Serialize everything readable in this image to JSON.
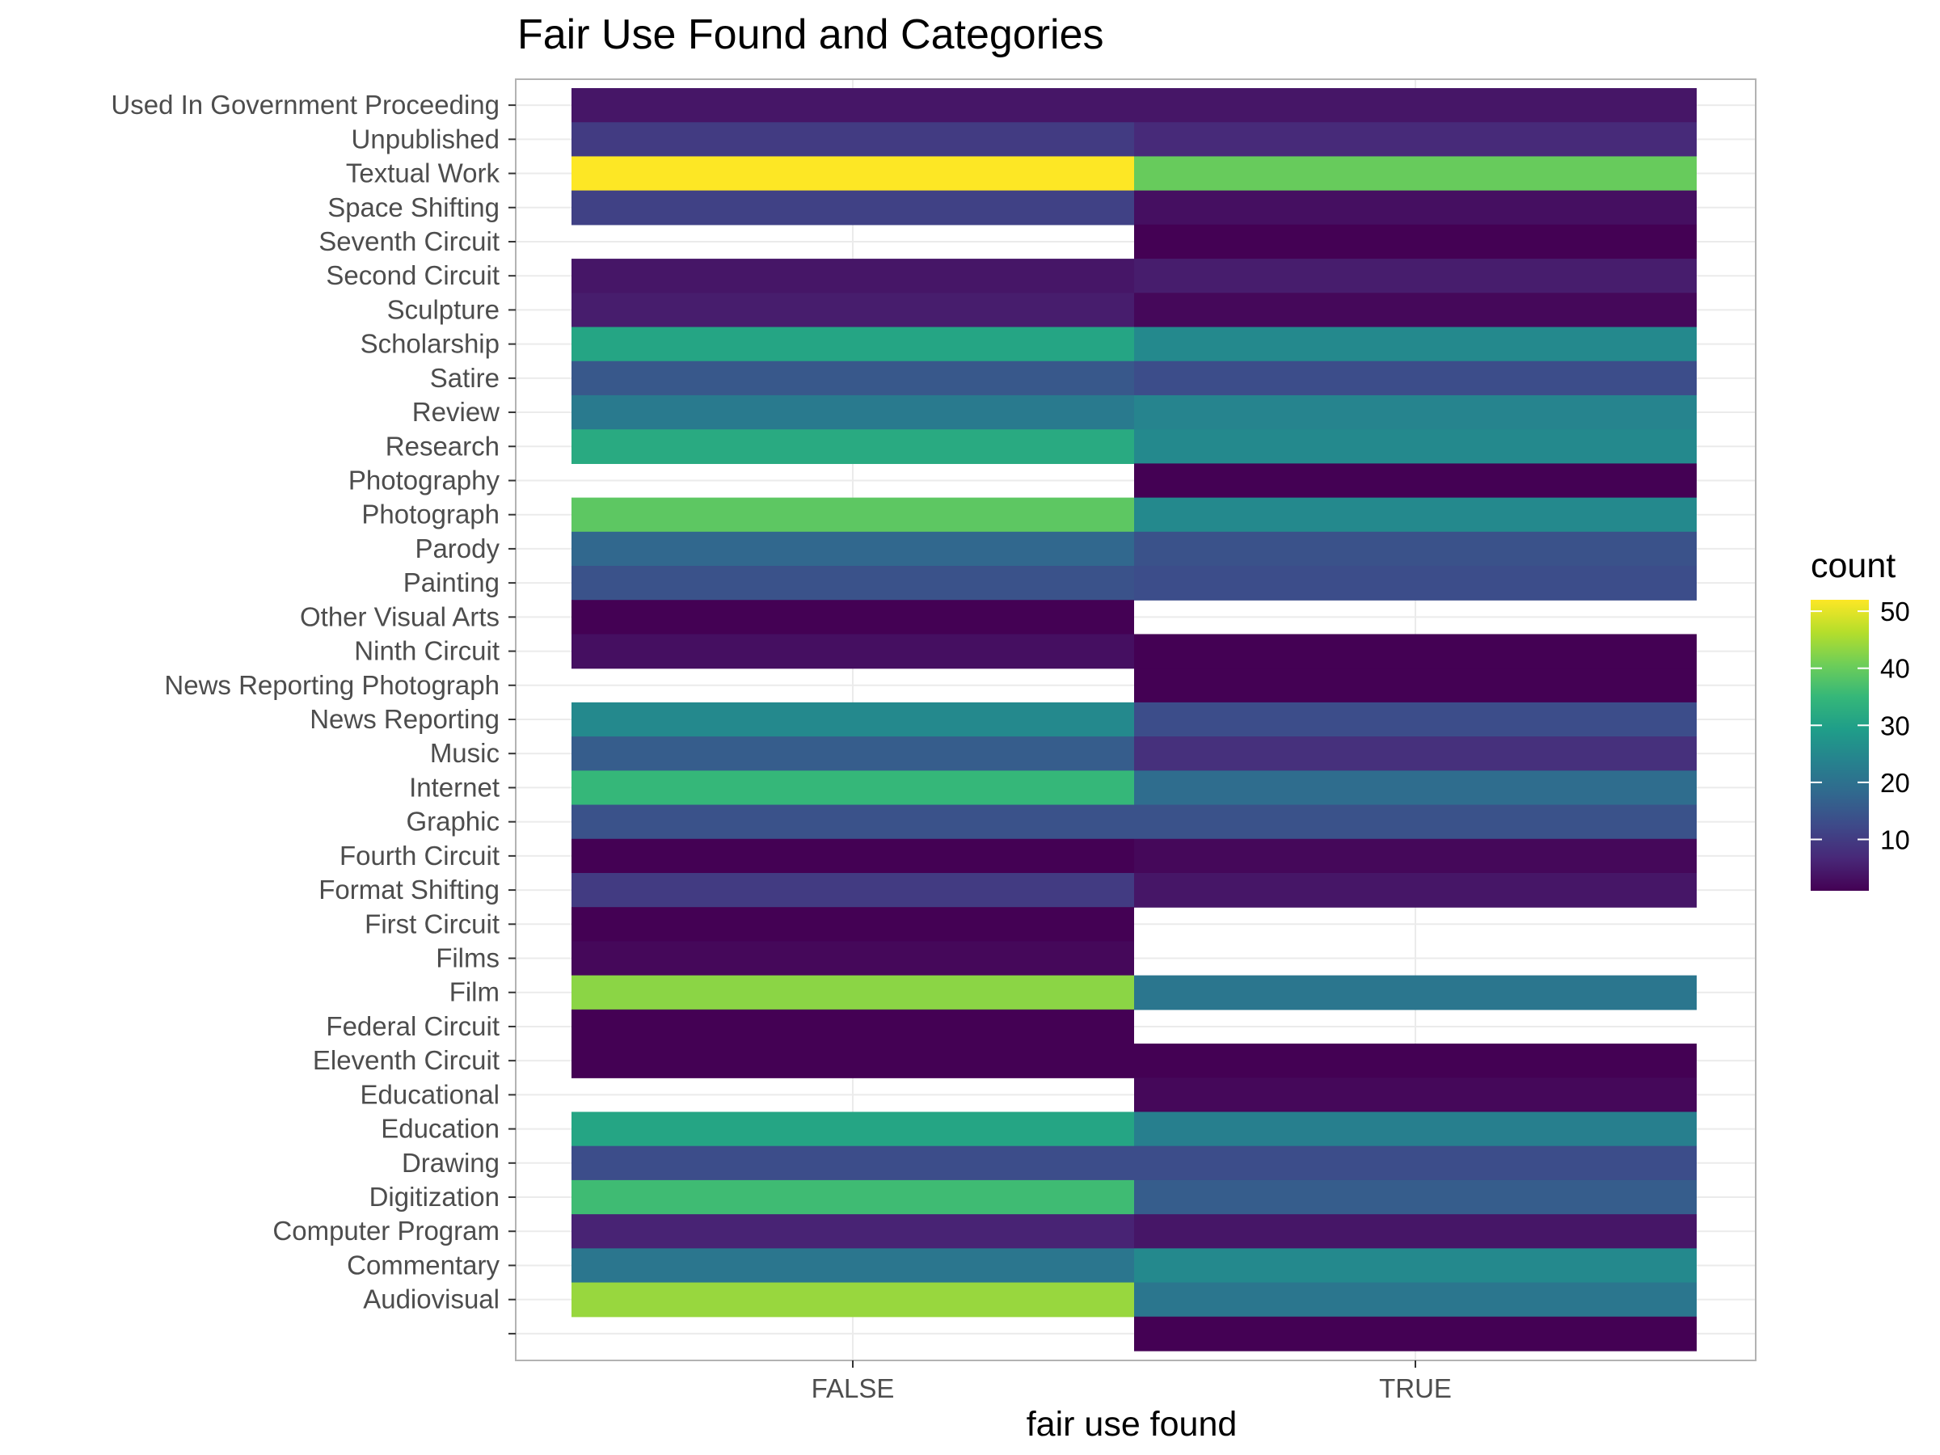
{
  "chart_data": {
    "type": "heatmap",
    "title": "Fair Use Found and Categories",
    "xlabel": "fair use found",
    "ylabel": "",
    "x": [
      "FALSE",
      "TRUE"
    ],
    "y": [
      "Used In Government Proceeding",
      "Unpublished",
      "Textual Work",
      "Space Shifting",
      "Seventh Circuit",
      "Second Circuit",
      "Sculpture",
      "Scholarship",
      "Satire",
      "Review",
      "Research",
      "Photography",
      "Photograph",
      "Parody",
      "Painting",
      "Other Visual Arts",
      "Ninth Circuit",
      "News Reporting Photograph",
      "News Reporting",
      "Music",
      "Internet",
      "Graphic",
      "Fourth Circuit",
      "Format Shifting",
      "First Circuit",
      "Films",
      "Film",
      "Federal Circuit",
      "Eleventh Circuit",
      "Educational",
      "Education",
      "Drawing",
      "Digitization",
      "Computer Program",
      "Commentary",
      "Audiovisual",
      ""
    ],
    "values": [
      [
        4,
        4
      ],
      [
        10,
        7
      ],
      [
        52,
        40
      ],
      [
        11,
        3
      ],
      [
        null,
        1
      ],
      [
        4,
        5
      ],
      [
        5,
        2
      ],
      [
        31,
        25
      ],
      [
        15,
        13
      ],
      [
        22,
        24
      ],
      [
        32,
        25
      ],
      [
        null,
        1
      ],
      [
        39,
        25
      ],
      [
        18,
        14
      ],
      [
        14,
        13
      ],
      [
        1,
        null
      ],
      [
        3,
        1
      ],
      [
        null,
        1
      ],
      [
        25,
        13
      ],
      [
        16,
        8
      ],
      [
        35,
        19
      ],
      [
        14,
        14
      ],
      [
        1,
        2
      ],
      [
        10,
        4
      ],
      [
        1,
        null
      ],
      [
        2,
        null
      ],
      [
        43,
        21
      ],
      [
        1,
        null
      ],
      [
        1,
        1
      ],
      [
        null,
        2
      ],
      [
        31,
        23
      ],
      [
        13,
        13
      ],
      [
        36,
        16
      ],
      [
        6,
        4
      ],
      [
        21,
        25
      ],
      [
        44,
        21
      ],
      [
        null,
        1
      ]
    ],
    "legend": {
      "title": "count",
      "position": "right",
      "min": 1,
      "max": 52,
      "ticks": [
        10,
        20,
        30,
        40,
        50
      ]
    },
    "colors": {
      "viridis": [
        "#440154",
        "#482878",
        "#3e4989",
        "#31688e",
        "#26828e",
        "#1f9e89",
        "#35b779",
        "#6ece58",
        "#b5de2b",
        "#fde725"
      ],
      "panel_border": "#b3b3b3",
      "grid": "#ebebeb"
    },
    "grid": true
  }
}
